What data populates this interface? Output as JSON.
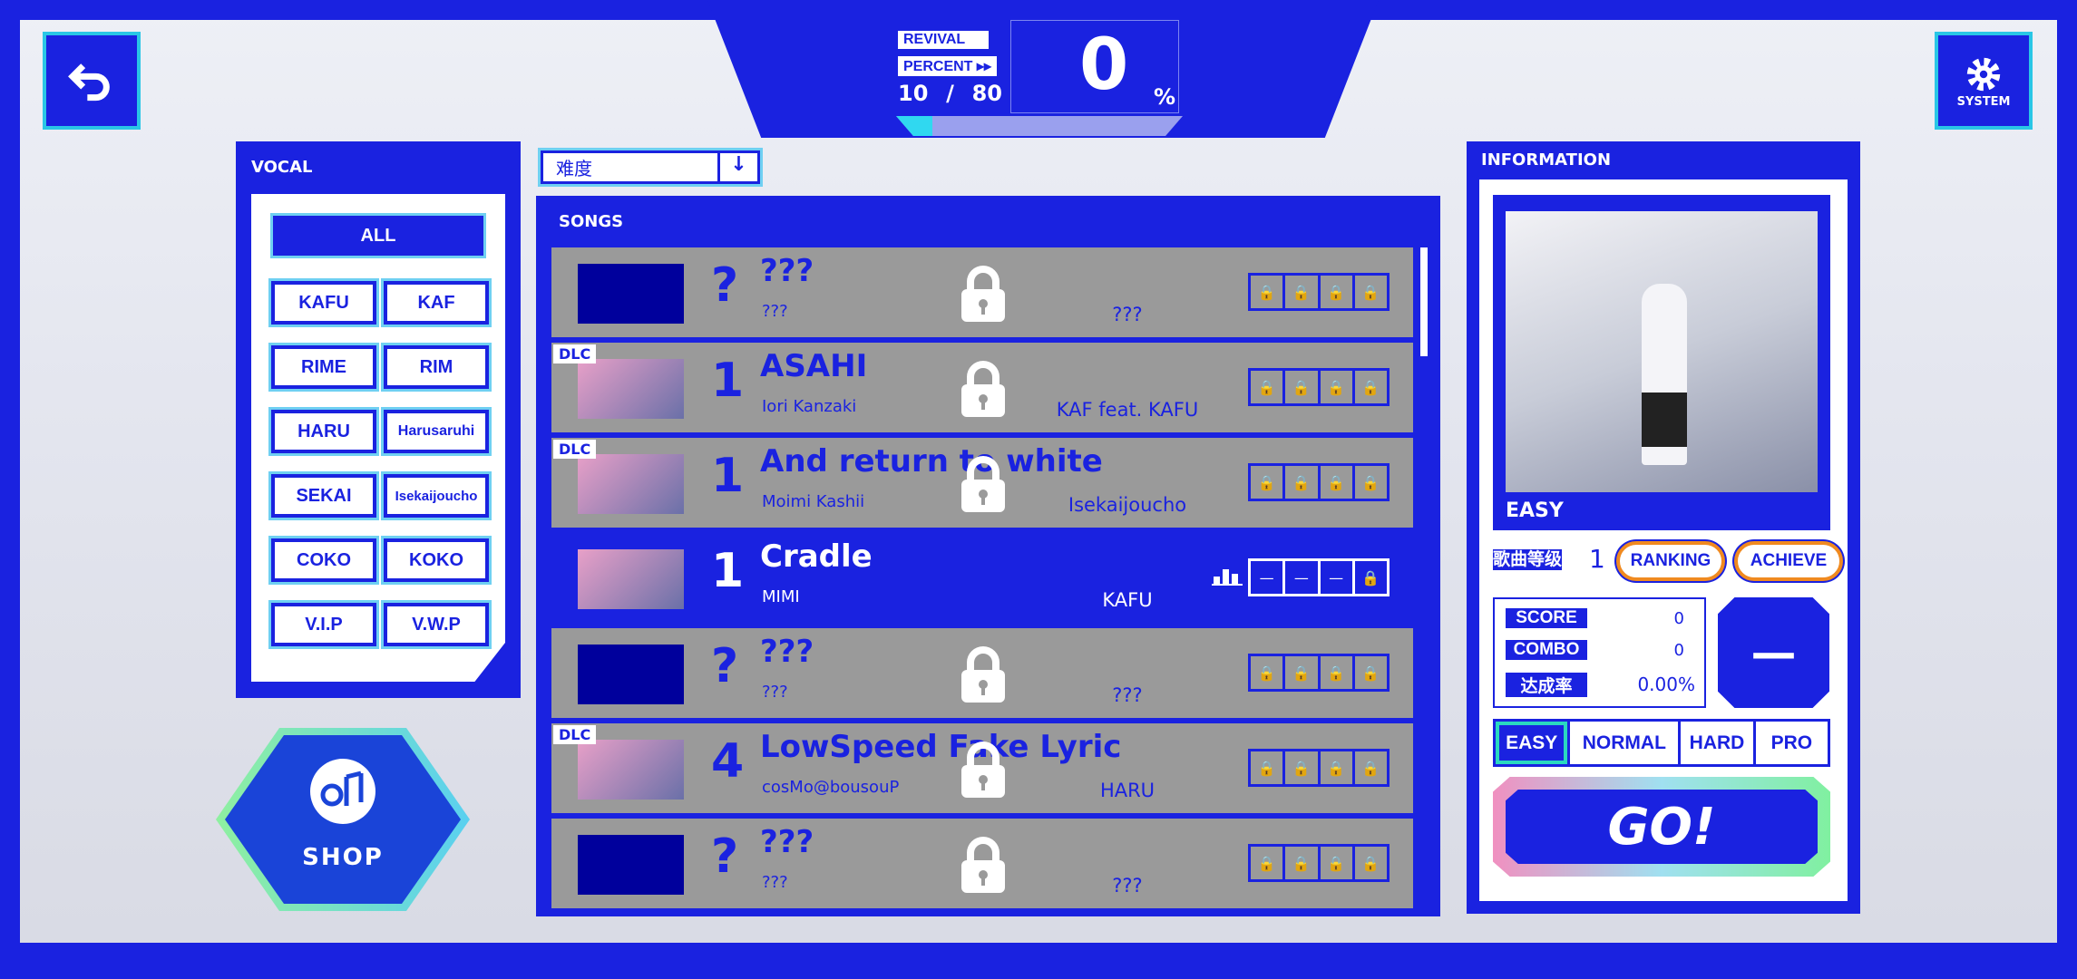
{
  "header": {
    "revival_label": "REVIVAL",
    "percent_label": "PERCENT ▸▸",
    "count_current": "10",
    "count_sep": "/",
    "count_total": "80",
    "percent_value": "0",
    "percent_sign": "%",
    "progress": 0.125
  },
  "system": {
    "label": "SYSTEM",
    "icon": "gear-icon"
  },
  "back": {
    "icon": "back-arrow-icon"
  },
  "vocal": {
    "title": "VOCAL",
    "all": "ALL",
    "items": [
      "KAFU",
      "KAF",
      "RIME",
      "RIM",
      "HARU",
      "Harusaruhi",
      "SEKAI",
      "Isekaijoucho",
      "COKO",
      "KOKO",
      "V.I.P",
      "V.W.P"
    ]
  },
  "shop": {
    "label": "SHOP"
  },
  "sort": {
    "value": "难度"
  },
  "songs": {
    "title": "SONGS",
    "rows": [
      {
        "dlc": "",
        "num": "?",
        "title": "???",
        "sub": "???",
        "artist": "???",
        "locked": true,
        "levels": [
          "🔒",
          "🔒",
          "🔒",
          "🔒"
        ]
      },
      {
        "dlc": "DLC",
        "num": "1",
        "title": "ASAHI",
        "sub": "Iori Kanzaki",
        "artist": "KAF feat. KAFU",
        "locked": true,
        "levels": [
          "🔒",
          "🔒",
          "🔒",
          "🔒"
        ]
      },
      {
        "dlc": "DLC",
        "num": "1",
        "title": "And return to white",
        "sub": "Moimi Kashii",
        "artist": "Isekaijoucho",
        "locked": true,
        "levels": [
          "🔒",
          "🔒",
          "🔒",
          "🔒"
        ]
      },
      {
        "dlc": "",
        "num": "1",
        "title": "Cradle",
        "sub": "MIMI",
        "artist": "KAFU",
        "locked": false,
        "levels": [
          "—",
          "—",
          "—",
          "🔒"
        ]
      },
      {
        "dlc": "",
        "num": "?",
        "title": "???",
        "sub": "???",
        "artist": "???",
        "locked": true,
        "levels": [
          "🔒",
          "🔒",
          "🔒",
          "🔒"
        ]
      },
      {
        "dlc": "DLC",
        "num": "4",
        "title": "LowSpeed Fake Lyric",
        "sub": "cosMo@bousouP",
        "artist": "HARU",
        "locked": true,
        "levels": [
          "🔒",
          "🔒",
          "🔒",
          "🔒"
        ]
      },
      {
        "dlc": "",
        "num": "?",
        "title": "???",
        "sub": "???",
        "artist": "???",
        "locked": true,
        "levels": [
          "🔒",
          "🔒",
          "🔒",
          "🔒"
        ]
      }
    ]
  },
  "info": {
    "title": "INFORMATION",
    "difficulty_label": "EASY",
    "level_label": "歌曲等级",
    "level": "1",
    "ranking": "RANKING",
    "achieve": "ACHIEVE",
    "score_label": "SCORE",
    "score": "0",
    "combo_label": "COMBO",
    "combo": "0",
    "rate_label": "达成率",
    "rate": "0.00%",
    "rank": "—",
    "tabs": [
      "EASY",
      "NORMAL",
      "HARD",
      "PRO"
    ],
    "go": "GO!"
  },
  "colors": {
    "primary": "#1a22e0",
    "accent": "#29c6e6",
    "locked_row": "#9a9a9a"
  }
}
